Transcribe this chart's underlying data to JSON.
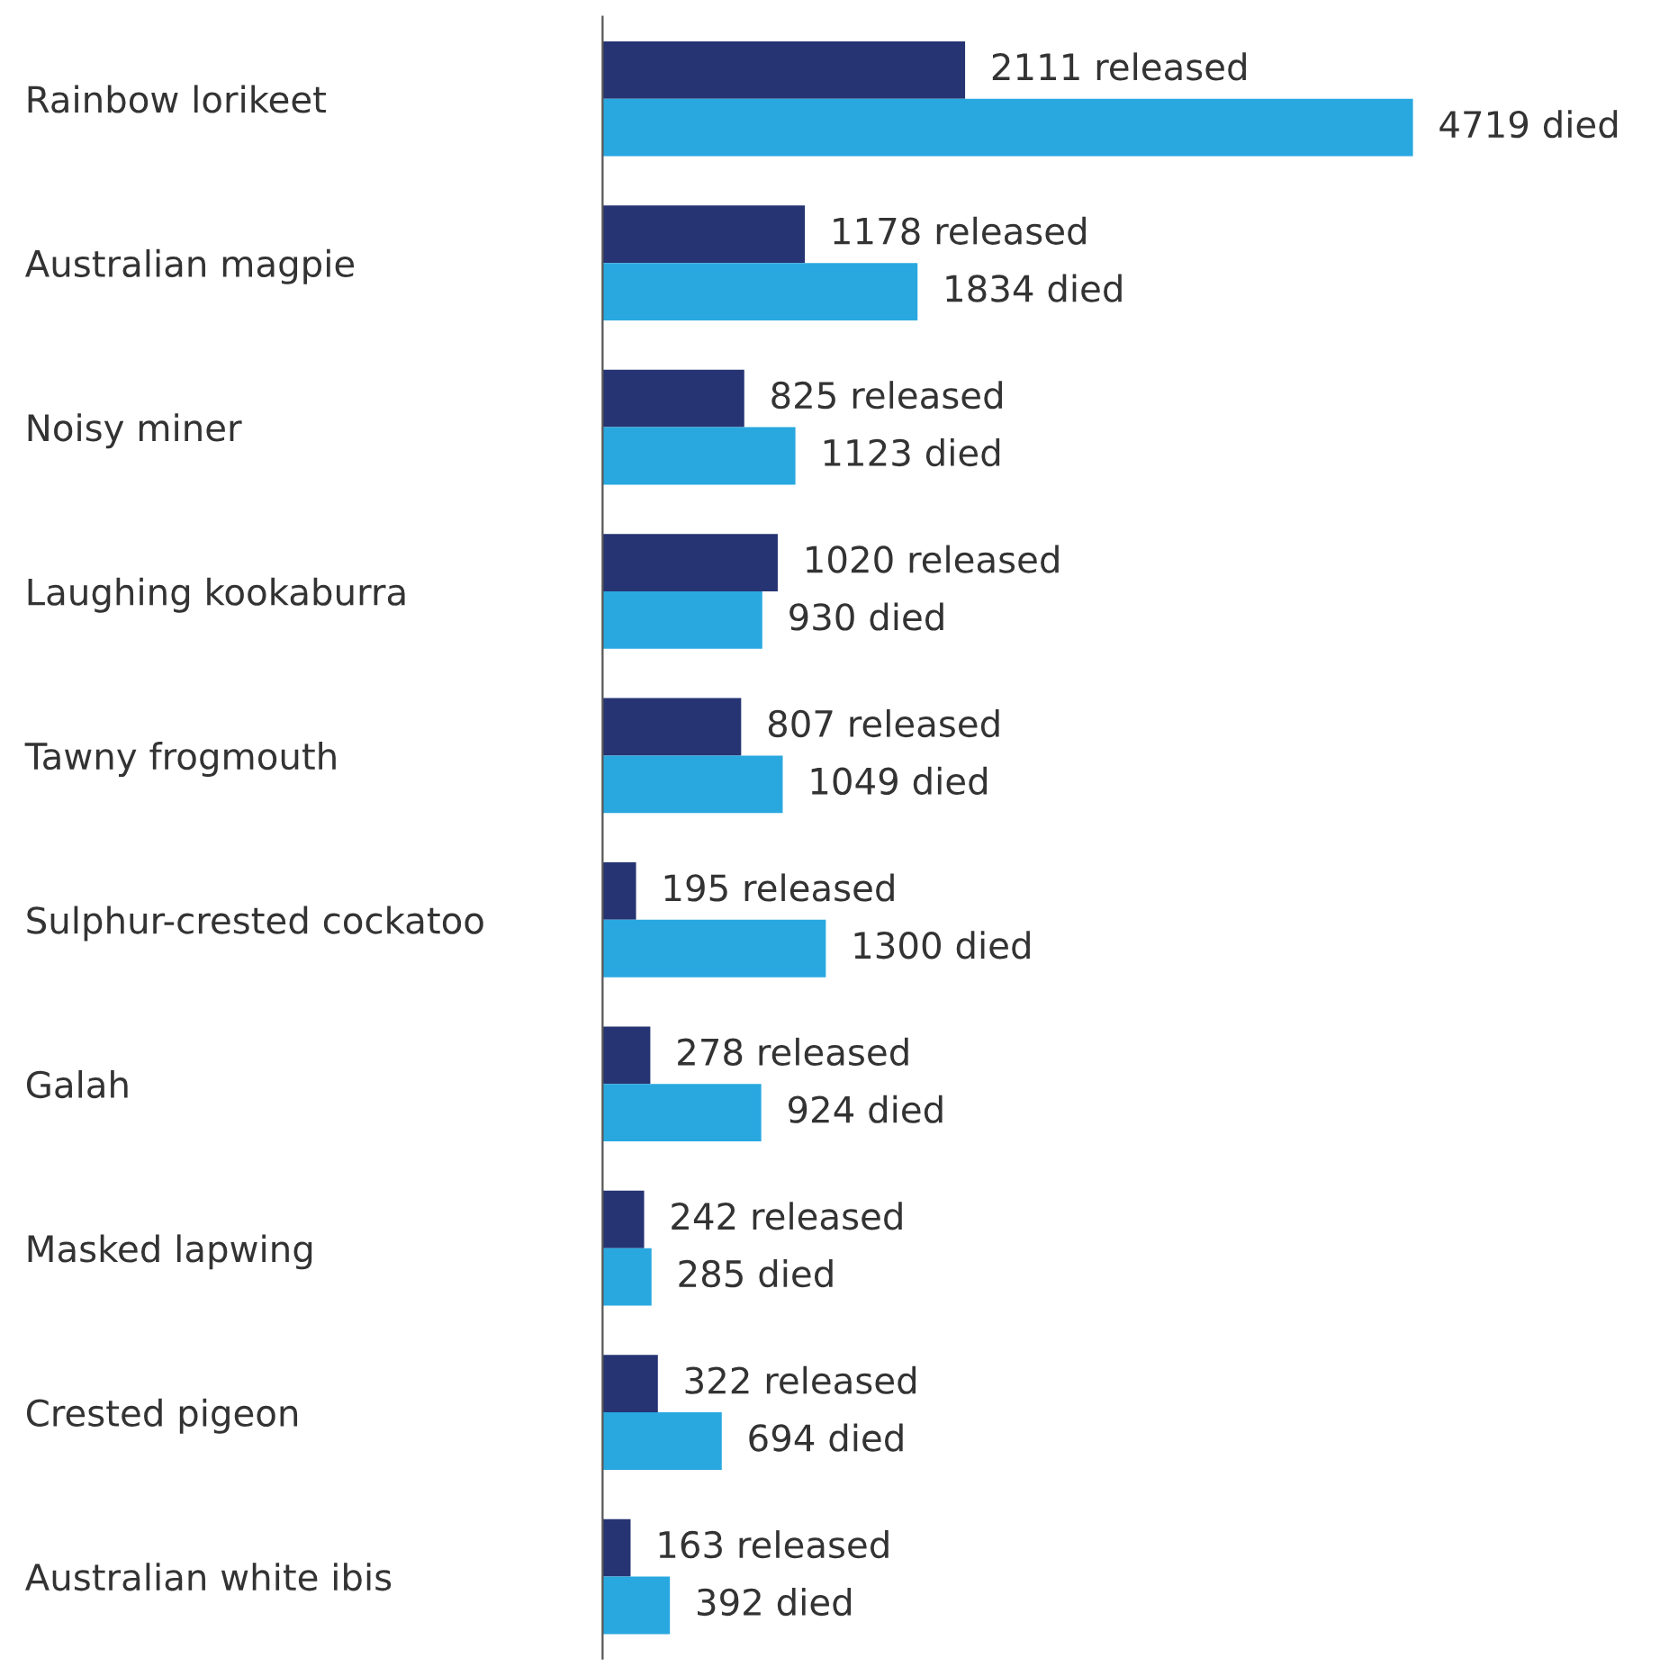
{
  "chart_data": {
    "type": "bar",
    "orientation": "horizontal",
    "categories": [
      "Rainbow lorikeet",
      "Australian magpie",
      "Noisy miner",
      "Laughing kookaburra",
      "Tawny frogmouth",
      "Sulphur-crested cockatoo",
      "Galah",
      "Masked lapwing",
      "Crested pigeon",
      "Australian white ibis"
    ],
    "series": [
      {
        "color": "#263473",
        "values": [
          2111,
          1178,
          825,
          1020,
          807,
          195,
          278,
          242,
          322,
          163
        ],
        "value_labels": [
          "2111 released",
          "1178 released",
          "825 released",
          "1020 released",
          "807 released",
          "195 released",
          "278 released",
          "242 released",
          "322 released",
          "163 released"
        ]
      },
      {
        "color": "#29a8e0",
        "values": [
          4719,
          1834,
          1123,
          930,
          1049,
          1300,
          924,
          285,
          694,
          392
        ],
        "value_labels": [
          "4719 died",
          "1834 died",
          "1123 died",
          "930 died",
          "1049 died",
          "1300 died",
          "924 died",
          "285 died",
          "694 died",
          "392 died"
        ]
      }
    ],
    "legend": false,
    "grid": false
  }
}
